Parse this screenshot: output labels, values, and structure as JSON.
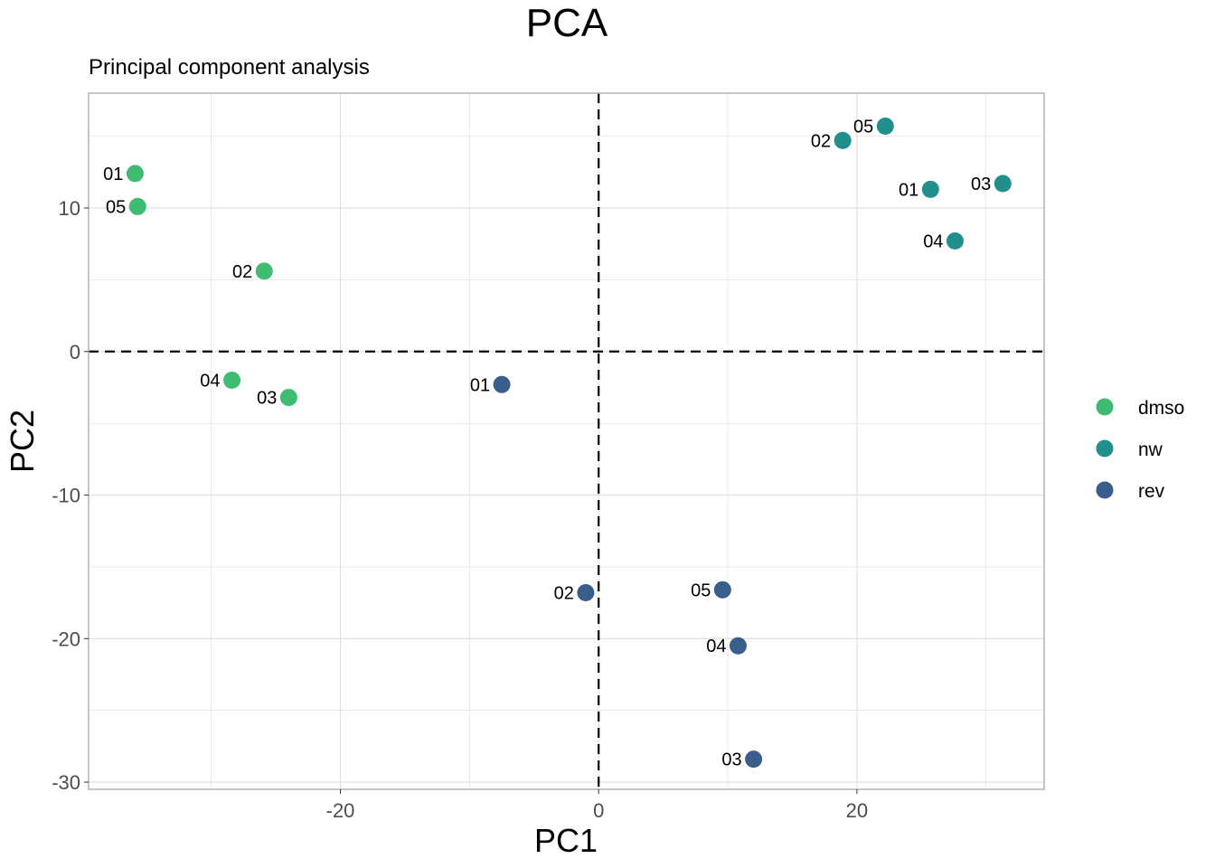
{
  "chart_data": {
    "type": "scatter",
    "title": "PCA",
    "subtitle": "Principal component analysis",
    "xlabel": "PC1",
    "ylabel": "PC2",
    "xlim": [
      -39.5,
      34.5
    ],
    "ylim": [
      -30.5,
      18
    ],
    "xticks": [
      -20,
      0,
      20
    ],
    "xtick_labels": [
      "-20",
      "0",
      "20"
    ],
    "yticks": [
      -30,
      -20,
      -10,
      0,
      10
    ],
    "ytick_labels": [
      "-30",
      "-20",
      "-10",
      "0",
      "10"
    ],
    "grid": true,
    "reference_lines": {
      "x": 0,
      "y": 0,
      "style": "dashed"
    },
    "legend_position": "right",
    "series": [
      {
        "name": "dmso",
        "color": "#3fbc73",
        "points": [
          {
            "label": "01",
            "x": -35.9,
            "y": 12.4
          },
          {
            "label": "05",
            "x": -35.7,
            "y": 10.1
          },
          {
            "label": "02",
            "x": -25.9,
            "y": 5.6
          },
          {
            "label": "04",
            "x": -28.4,
            "y": -2.0
          },
          {
            "label": "03",
            "x": -24.0,
            "y": -3.2
          }
        ]
      },
      {
        "name": "nw",
        "color": "#21908c",
        "points": [
          {
            "label": "02",
            "x": 18.9,
            "y": 14.7
          },
          {
            "label": "05",
            "x": 22.2,
            "y": 15.7
          },
          {
            "label": "01",
            "x": 25.7,
            "y": 11.3
          },
          {
            "label": "03",
            "x": 31.3,
            "y": 11.7
          },
          {
            "label": "04",
            "x": 27.6,
            "y": 7.7
          }
        ]
      },
      {
        "name": "rev",
        "color": "#3a5e8c",
        "points": [
          {
            "label": "01",
            "x": -7.5,
            "y": -2.3
          },
          {
            "label": "02",
            "x": -1.0,
            "y": -16.8
          },
          {
            "label": "05",
            "x": 9.6,
            "y": -16.6
          },
          {
            "label": "04",
            "x": 10.8,
            "y": -20.5
          },
          {
            "label": "03",
            "x": 12.0,
            "y": -28.4
          }
        ]
      }
    ]
  }
}
